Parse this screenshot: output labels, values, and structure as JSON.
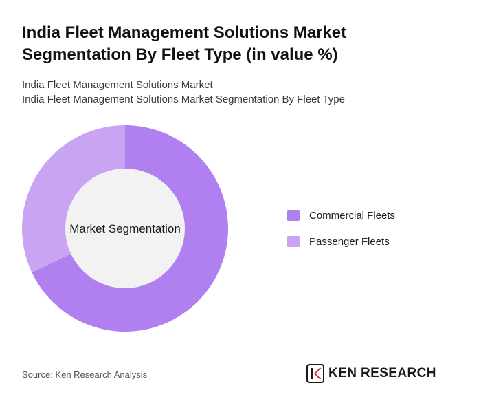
{
  "header": {
    "title": "India Fleet Management Solutions Market Segmentation By Fleet Type (in value %)",
    "subtitle_line1": "India Fleet Management Solutions Market",
    "subtitle_line2": "India Fleet Management Solutions Market Segmentation By Fleet Type"
  },
  "chart_data": {
    "type": "pie",
    "center_label": "Market Segmentation",
    "categories": [
      "Commercial Fleets",
      "Passenger Fleets"
    ],
    "values": [
      68,
      32
    ],
    "colors": [
      "#b07ff0",
      "#c9a4f3"
    ],
    "hole_color": "#f2f2f2",
    "legend_position": "right"
  },
  "footer": {
    "source": "Source: Ken Research Analysis",
    "logo_text": "KEN RESEARCH"
  }
}
